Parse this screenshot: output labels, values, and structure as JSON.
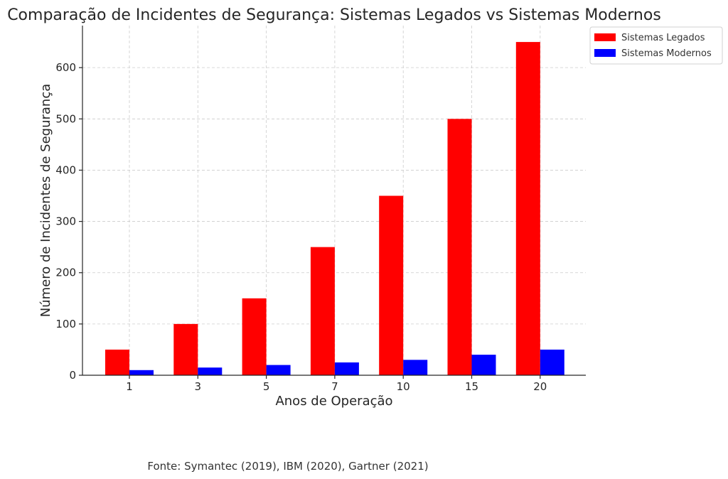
{
  "chart_data": {
    "type": "bar",
    "title": "Comparação de Incidentes de Segurança: Sistemas Legados vs Sistemas Modernos",
    "xlabel": "Anos de Operação",
    "ylabel": "Número de Incidentes de Segurança",
    "categories": [
      "1",
      "3",
      "5",
      "7",
      "10",
      "15",
      "20"
    ],
    "series": [
      {
        "name": "Sistemas Legados",
        "color": "#ff0000",
        "values": [
          50,
          100,
          150,
          250,
          350,
          500,
          650
        ]
      },
      {
        "name": "Sistemas Modernos",
        "color": "#0000ff",
        "values": [
          10,
          15,
          20,
          25,
          30,
          40,
          50
        ]
      }
    ],
    "yticks": [
      0,
      100,
      200,
      300,
      400,
      500,
      600
    ],
    "ylim": [
      0,
      682
    ],
    "grid": true,
    "legend_position": "top-right"
  },
  "footer": {
    "source": "Fonte: Symantec (2019), IBM (2020), Gartner (2021)"
  }
}
